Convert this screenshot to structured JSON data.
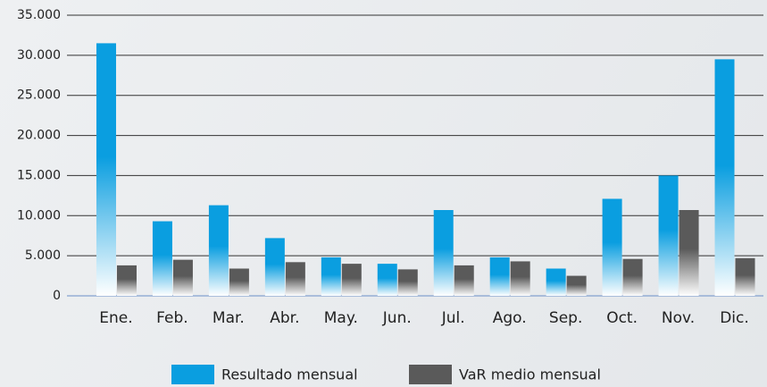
{
  "chart_data": {
    "type": "bar",
    "categories": [
      "Ene.",
      "Feb.",
      "Mar.",
      "Abr.",
      "May.",
      "Jun.",
      "Jul.",
      "Ago.",
      "Sep.",
      "Oct.",
      "Nov.",
      "Dic."
    ],
    "series": [
      {
        "name": "Resultado mensual",
        "color": "#0a9ee0",
        "values": [
          31500,
          9300,
          11300,
          7200,
          4800,
          4000,
          10700,
          4800,
          3400,
          12100,
          15000,
          29500
        ]
      },
      {
        "name": "VaR medio mensual",
        "color": "#5a5a5a",
        "values": [
          3800,
          4500,
          3400,
          4200,
          4000,
          3300,
          3800,
          4300,
          2500,
          4600,
          10700,
          4700
        ]
      }
    ],
    "ylim": [
      0,
      35000
    ],
    "yticks": [
      0,
      {
        "value": 5000,
        "label": "5.000"
      },
      {
        "value": 10000,
        "label": "10.000"
      },
      {
        "value": 15000,
        "label": "15.000"
      },
      {
        "value": 20000,
        "label": "20.000"
      },
      {
        "value": 25000,
        "label": "25.000"
      },
      {
        "value": 30000,
        "label": "30.000"
      },
      {
        "value": 35000,
        "label": "35.000"
      }
    ],
    "grid": true,
    "legend": "bottom"
  }
}
